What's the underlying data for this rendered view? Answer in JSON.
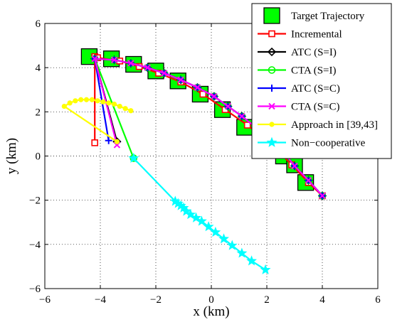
{
  "chart_data": {
    "type": "line",
    "xlabel": "x (km)",
    "ylabel": "y (km)",
    "xlim": [
      -6,
      6
    ],
    "ylim": [
      -6,
      6
    ],
    "xticks": [
      -6,
      -4,
      -2,
      0,
      2,
      4,
      6
    ],
    "yticks": [
      -6,
      -4,
      -2,
      0,
      2,
      4,
      6
    ],
    "xtick_labels": [
      "−6",
      "−4",
      "−2",
      "0",
      "2",
      "4",
      "6"
    ],
    "ytick_labels": [
      "−6",
      "−4",
      "−2",
      "0",
      "2",
      "4",
      "6"
    ],
    "grid": true,
    "legend_position": "top-right",
    "series": [
      {
        "name": "Target Trajectory",
        "color": "#00ff00",
        "marker": "square-large",
        "line": false,
        "x": [
          -4.4,
          -3.6,
          -2.8,
          -2.0,
          -1.2,
          -0.4,
          0.4,
          1.2,
          1.8,
          2.2,
          2.6,
          3.0,
          3.4
        ],
        "y": [
          4.5,
          4.4,
          4.15,
          3.85,
          3.4,
          2.8,
          2.1,
          1.3,
          0.7,
          0.3,
          0.0,
          -0.4,
          -1.2
        ]
      },
      {
        "name": "Incremental",
        "color": "#ff0000",
        "marker": "square",
        "x": [
          -4.2,
          -4.2,
          -4.1,
          -3.3,
          -2.6,
          -1.9,
          -1.1,
          -0.3,
          0.5,
          1.3,
          2.1,
          2.9,
          3.5,
          4.0
        ],
        "y": [
          0.6,
          4.5,
          4.45,
          4.3,
          4.05,
          3.75,
          3.35,
          2.8,
          2.1,
          1.4,
          0.6,
          -0.4,
          -1.2,
          -1.8
        ]
      },
      {
        "name": "ATC (S=I)",
        "color": "#000000",
        "marker": "diamond",
        "x": [
          -3.4,
          -4.2,
          -3.5,
          -2.9,
          -2.3,
          -1.7,
          -1.1,
          -0.5,
          0.1,
          0.6,
          1.1,
          1.6,
          2.1,
          2.6,
          3.0,
          3.5,
          4.0
        ],
        "y": [
          0.65,
          4.4,
          4.35,
          4.2,
          4.0,
          3.75,
          3.45,
          3.1,
          2.7,
          2.25,
          1.8,
          1.3,
          0.8,
          0.2,
          -0.45,
          -1.1,
          -1.8
        ]
      },
      {
        "name": "CTA (S=I)",
        "color": "#00ff00",
        "marker": "circle",
        "x": [
          -2.8,
          -4.2,
          -3.5,
          -2.9,
          -2.3,
          -1.7,
          -1.1,
          -0.5,
          0.1,
          0.6,
          1.1,
          1.6,
          2.1,
          2.6,
          3.0,
          3.5,
          4.0
        ],
        "y": [
          -0.1,
          4.4,
          4.35,
          4.2,
          4.0,
          3.75,
          3.45,
          3.1,
          2.7,
          2.25,
          1.8,
          1.3,
          0.8,
          0.2,
          -0.45,
          -1.1,
          -1.8
        ]
      },
      {
        "name": "ATC (S=C)",
        "color": "#0000ff",
        "marker": "plus",
        "x": [
          -3.7,
          -4.2,
          -3.5,
          -2.9,
          -2.3,
          -1.7,
          -1.1,
          -0.5,
          0.1,
          0.6,
          1.1,
          1.6,
          2.1,
          2.6,
          3.0,
          3.5,
          4.0
        ],
        "y": [
          0.7,
          4.4,
          4.35,
          4.2,
          4.0,
          3.75,
          3.45,
          3.1,
          2.7,
          2.25,
          1.8,
          1.3,
          0.8,
          0.2,
          -0.45,
          -1.1,
          -1.8
        ]
      },
      {
        "name": "CTA (S=C)",
        "color": "#ff00ff",
        "marker": "x",
        "x": [
          -3.4,
          -4.2,
          -3.5,
          -2.9,
          -2.3,
          -1.7,
          -1.1,
          -0.5,
          0.1,
          0.6,
          1.1,
          1.6,
          2.1,
          2.6,
          3.0,
          3.5,
          4.0
        ],
        "y": [
          0.5,
          4.4,
          4.35,
          4.2,
          4.0,
          3.75,
          3.45,
          3.1,
          2.7,
          2.25,
          1.8,
          1.3,
          0.8,
          0.2,
          -0.45,
          -1.1,
          -1.8
        ]
      },
      {
        "name": "Approach in [39,43]",
        "color": "#ffff00",
        "marker": "dot",
        "x": [
          -3.4,
          -5.3,
          -5.1,
          -4.9,
          -4.7,
          -4.5,
          -4.3,
          -4.1,
          -3.9,
          -3.7,
          -3.5,
          -3.3,
          -3.1,
          -2.9
        ],
        "y": [
          0.65,
          2.25,
          2.4,
          2.5,
          2.55,
          2.55,
          2.55,
          2.5,
          2.45,
          2.4,
          2.35,
          2.25,
          2.15,
          2.05
        ]
      },
      {
        "name": "Non−cooperative",
        "color": "#00ffff",
        "marker": "star",
        "x": [
          -2.8,
          -1.3,
          -1.2,
          -1.1,
          -1.0,
          -0.9,
          -0.75,
          -0.55,
          -0.35,
          -0.1,
          0.15,
          0.45,
          0.75,
          1.1,
          1.45,
          1.95
        ],
        "y": [
          -0.1,
          -2.05,
          -2.15,
          -2.25,
          -2.35,
          -2.5,
          -2.65,
          -2.8,
          -2.95,
          -3.2,
          -3.45,
          -3.75,
          -4.05,
          -4.4,
          -4.75,
          -5.15
        ]
      }
    ]
  }
}
